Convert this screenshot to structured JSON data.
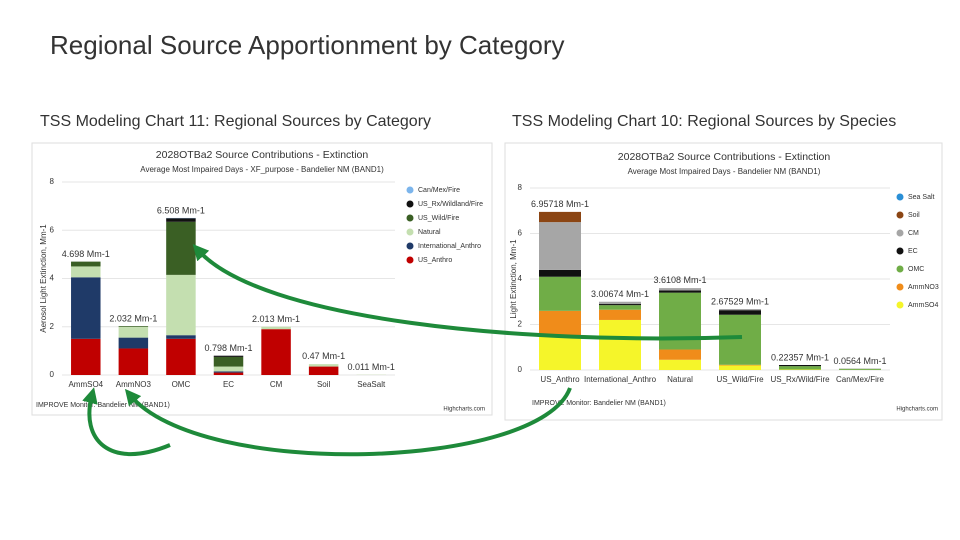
{
  "slide": {
    "title": "Regional Source Apportionment by Category",
    "captions": [
      "TSS Modeling Chart 11:  Regional Sources by Category",
      "TSS Modeling Chart 10: Regional Sources by Species"
    ]
  },
  "chart_data": [
    {
      "type": "bar",
      "stacked": true,
      "title": "2028OTBa2 Source Contributions - Extinction",
      "subtitle": "Average Most Impaired Days - XF_purpose - Bandelier NM (BAND1)",
      "y_label": "Aerosol Light Extinction, Mm-1",
      "footer": "IMPROVE Monitor: Bandelier NM (BAND1)",
      "credit": "Highcharts.com",
      "categories": [
        "AmmSO4",
        "AmmNO3",
        "OMC",
        "EC",
        "CM",
        "Soil",
        "SeaSalt"
      ],
      "series": [
        {
          "name": "Can/Mex/Fire",
          "color": "#7cb5ec",
          "values": [
            0,
            0,
            0.01,
            0,
            0,
            0,
            0
          ]
        },
        {
          "name": "US_Rx/Wildland/Fire",
          "color": "#111111",
          "values": [
            0,
            0,
            0.15,
            0.05,
            0,
            0,
            0
          ]
        },
        {
          "name": "US_Wild/Fire",
          "color": "#3a5f24",
          "values": [
            0.2,
            0.03,
            2.2,
            0.4,
            0,
            0,
            0
          ]
        },
        {
          "name": "Natural",
          "color": "#c4dfb0",
          "values": [
            0.45,
            0.45,
            2.5,
            0.2,
            0.1,
            0.1,
            0.011
          ]
        },
        {
          "name": "International_Anthro",
          "color": "#1f3a68",
          "values": [
            2.55,
            0.45,
            0.15,
            0.05,
            0,
            0,
            0
          ]
        },
        {
          "name": "US_Anthro",
          "color": "#c00000",
          "values": [
            1.5,
            1.1,
            1.5,
            0.1,
            1.9,
            0.35,
            0
          ]
        }
      ],
      "totals": {
        "values": [
          4.698,
          2.032,
          6.508,
          0.798,
          2.013,
          0.47,
          0.011
        ],
        "value_labels": [
          "4.698 Mm-1",
          "2.032 Mm-1",
          "6.508 Mm-1",
          "0.798 Mm-1",
          "2.013 Mm-1",
          "0.47 Mm-1",
          "0.011 Mm-1"
        ]
      },
      "ylim": [
        0,
        8
      ],
      "yticks": [
        0,
        2,
        4,
        6,
        8
      ],
      "grid": true,
      "legend": "right"
    },
    {
      "type": "bar",
      "stacked": true,
      "title": "2028OTBa2 Source Contributions - Extinction",
      "subtitle": "Average Most Impaired Days - Bandelier NM (BAND1)",
      "y_label": "Light Extinction, Mm-1",
      "footer": "IMPROVE Monitor: Bandelier NM (BAND1)",
      "credit": "Highcharts.com",
      "categories": [
        "US_Anthro",
        "International_Anthro",
        "Natural",
        "US_Wild/Fire",
        "US_Rx/Wild/Fire",
        "Can/Mex/Fire"
      ],
      "series": [
        {
          "name": "Sea Salt",
          "color": "#2a8fd6",
          "values": [
            0,
            0,
            0,
            0,
            0,
            0
          ]
        },
        {
          "name": "Soil",
          "color": "#8b4513",
          "values": [
            0.45,
            0,
            0,
            0,
            0,
            0
          ]
        },
        {
          "name": "CM",
          "color": "#a6a6a6",
          "values": [
            2.1,
            0.1,
            0.1,
            0.05,
            0,
            0
          ]
        },
        {
          "name": "EC",
          "color": "#111111",
          "values": [
            0.3,
            0.05,
            0.1,
            0.2,
            0.05,
            0.005
          ]
        },
        {
          "name": "OMC",
          "color": "#70ad47",
          "values": [
            1.5,
            0.2,
            2.5,
            2.2,
            0.15,
            0.045
          ]
        },
        {
          "name": "AmmNO3",
          "color": "#f08c1a",
          "values": [
            1.1,
            0.45,
            0.45,
            0.03,
            0,
            0
          ]
        },
        {
          "name": "AmmSO4",
          "color": "#f5f52a",
          "values": [
            1.5,
            2.2,
            0.45,
            0.2,
            0.02,
            0.005
          ]
        }
      ],
      "totals": {
        "values": [
          6.95718,
          3.00674,
          3.6108,
          2.67529,
          0.22357,
          0.0564
        ],
        "value_labels": [
          "6.95718 Mm-1",
          "3.00674 Mm-1",
          "3.6108 Mm-1",
          "2.67529 Mm-1",
          "0.22357 Mm-1",
          "0.0564 Mm-1"
        ]
      },
      "ylim": [
        0,
        8
      ],
      "yticks": [
        0,
        2,
        4,
        6,
        8
      ],
      "grid": true,
      "legend": "right"
    }
  ]
}
